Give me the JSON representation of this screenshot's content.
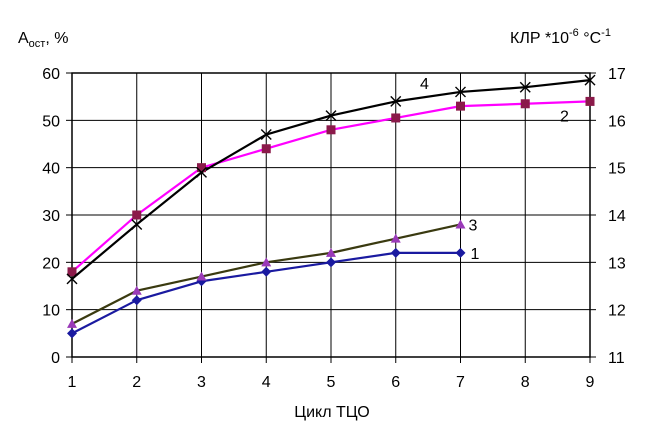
{
  "chart_data": {
    "type": "line",
    "title": "",
    "xlabel": "Цикл ТЦО",
    "ylabel_left": {
      "main": "A",
      "sub": "ост",
      "suffix": ", %"
    },
    "ylabel_right": {
      "main": "КЛР *10",
      "exp1": "-6",
      "mid": " °С",
      "exp2": "-1"
    },
    "x_ticks": [
      "1",
      "2",
      "3",
      "4",
      "5",
      "6",
      "7",
      "8",
      "9"
    ],
    "xlim": [
      1,
      9
    ],
    "y_left_ticks": [
      "0",
      "10",
      "20",
      "30",
      "40",
      "50",
      "60"
    ],
    "y_left_lim": [
      0,
      60
    ],
    "y_right_ticks": [
      "11",
      "12",
      "13",
      "14",
      "15",
      "16",
      "17"
    ],
    "y_right_lim": [
      11,
      17
    ],
    "grid": true,
    "series": [
      {
        "name": "1",
        "axis": "left",
        "color": "#1a1aa0",
        "marker": "diamond",
        "x": [
          1,
          2,
          3,
          4,
          5,
          6,
          7
        ],
        "y": [
          5,
          12,
          16,
          18,
          20,
          22,
          22
        ]
      },
      {
        "name": "2",
        "axis": "left",
        "color": "#ff00ff",
        "marker": "square",
        "x": [
          1,
          2,
          3,
          4,
          5,
          6,
          7,
          8,
          9
        ],
        "y": [
          18,
          30,
          40,
          44,
          48,
          50.5,
          53,
          53.5,
          54
        ]
      },
      {
        "name": "3",
        "axis": "left",
        "color": "#3a3a10",
        "marker": "triangle",
        "x": [
          1,
          2,
          3,
          4,
          5,
          6,
          7
        ],
        "y": [
          7,
          14,
          17,
          20,
          22,
          25,
          28
        ]
      },
      {
        "name": "4",
        "axis": "left",
        "color": "#000000",
        "marker": "x",
        "x": [
          1,
          2,
          3,
          4,
          5,
          6,
          7,
          8,
          9
        ],
        "y": [
          16.5,
          28,
          39,
          47,
          51,
          54,
          56,
          57,
          58.5
        ]
      }
    ]
  }
}
